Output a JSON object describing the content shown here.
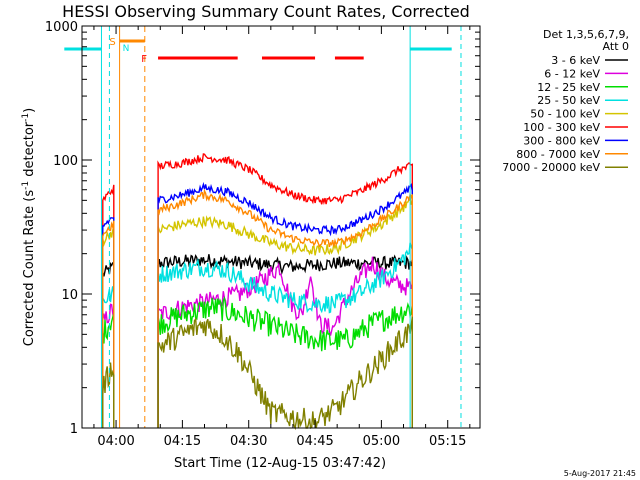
{
  "chart_data": {
    "type": "line",
    "title": "HESSI Observing Summary Count Rates, Corrected",
    "xlabel": "Start Time (12-Aug-15 03:47:42)",
    "ylabel_main": "Corrected Count Rate (s",
    "ylabel_sup1": "-1",
    "ylabel_mid": " detector",
    "ylabel_sup2": "-1",
    "ylabel_end": ")",
    "yscale": "log",
    "ylim": [
      1,
      1000
    ],
    "y_ticks": [
      {
        "value": 1,
        "label": "1"
      },
      {
        "value": 10,
        "label": "10"
      },
      {
        "value": 100,
        "label": "100"
      },
      {
        "value": 1000,
        "label": "1000"
      }
    ],
    "xlim_min": [
      -7.7,
      82.3
    ],
    "x_ticks": [
      {
        "value": 0,
        "label": "04:00"
      },
      {
        "value": 15,
        "label": "04:15"
      },
      {
        "value": 30,
        "label": "04:30"
      },
      {
        "value": 45,
        "label": "04:45"
      },
      {
        "value": 60,
        "label": "05:00"
      },
      {
        "value": 75,
        "label": "05:15"
      }
    ],
    "legend": {
      "placement": "right",
      "header1": "Det 1,3,5,6,7,9,",
      "header2": "Att 0",
      "entries": [
        {
          "label": "3 - 6 keV",
          "color": "#000000"
        },
        {
          "label": "6 - 12 keV",
          "color": "#dd00dd"
        },
        {
          "label": "12 - 25 keV",
          "color": "#00dd00"
        },
        {
          "label": "25 - 50 keV",
          "color": "#00e0e0"
        },
        {
          "label": "50 - 100 keV",
          "color": "#d4c400"
        },
        {
          "label": "100 - 300 keV",
          "color": "#ff0000"
        },
        {
          "label": "300 - 800 keV",
          "color": "#0000ff"
        },
        {
          "label": "800 - 7000 keV",
          "color": "#ff8800"
        },
        {
          "label": "7000 - 20000 keV",
          "color": "#808000"
        }
      ]
    },
    "markers": {
      "s_label": "S",
      "n_label": "N",
      "f_label": "F"
    },
    "series": [
      {
        "name": "3 - 6 keV",
        "color": "#000000",
        "noise": 0.05,
        "segments": [
          [
            [
              -3,
              14
            ],
            [
              -0.5,
              16
            ]
          ],
          [
            [
              9.5,
              17
            ],
            [
              20,
              18
            ],
            [
              30,
              17
            ],
            [
              40,
              16
            ],
            [
              50,
              17
            ],
            [
              58,
              17
            ],
            [
              63,
              17
            ],
            [
              67,
              17
            ]
          ]
        ]
      },
      {
        "name": "6 - 12 keV",
        "color": "#dd00dd",
        "noise": 0.07,
        "segments": [
          [
            [
              -3,
              6
            ],
            [
              -0.5,
              8
            ]
          ],
          [
            [
              9.5,
              7
            ],
            [
              15,
              8
            ],
            [
              22,
              9
            ],
            [
              28,
              10
            ],
            [
              32,
              12
            ],
            [
              37,
              16
            ],
            [
              40,
              8
            ],
            [
              42,
              7
            ],
            [
              44,
              14
            ],
            [
              46,
              6
            ],
            [
              49,
              5.5
            ],
            [
              52,
              9
            ],
            [
              55,
              13
            ],
            [
              58,
              17
            ],
            [
              61,
              13
            ],
            [
              63,
              12
            ],
            [
              67,
              11
            ]
          ]
        ]
      },
      {
        "name": "12 - 25 keV",
        "color": "#00dd00",
        "noise": 0.09,
        "segments": [
          [
            [
              -3,
              5
            ],
            [
              -0.5,
              7
            ]
          ],
          [
            [
              9.5,
              6
            ],
            [
              15,
              7
            ],
            [
              22,
              8
            ],
            [
              28,
              7
            ],
            [
              34,
              6
            ],
            [
              40,
              5
            ],
            [
              46,
              4.5
            ],
            [
              52,
              4.5
            ],
            [
              58,
              6
            ],
            [
              63,
              7
            ],
            [
              67,
              8
            ]
          ]
        ]
      },
      {
        "name": "25 - 50 keV",
        "color": "#00e0e0",
        "noise": 0.07,
        "segments": [
          [
            [
              -3,
              9
            ],
            [
              -0.5,
              10
            ]
          ],
          [
            [
              9.5,
              14
            ],
            [
              15,
              15
            ],
            [
              20,
              16
            ],
            [
              25,
              15
            ],
            [
              30,
              12
            ],
            [
              35,
              10
            ],
            [
              40,
              9
            ],
            [
              45,
              8.5
            ],
            [
              50,
              8.5
            ],
            [
              55,
              10
            ],
            [
              60,
              13
            ],
            [
              64,
              17
            ],
            [
              67,
              22
            ]
          ]
        ]
      },
      {
        "name": "50 - 100 keV",
        "color": "#d4c400",
        "noise": 0.04,
        "segments": [
          [
            [
              -3,
              25
            ],
            [
              -0.5,
              30
            ]
          ],
          [
            [
              9.5,
              30
            ],
            [
              15,
              33
            ],
            [
              20,
              35
            ],
            [
              25,
              33
            ],
            [
              30,
              28
            ],
            [
              35,
              24
            ],
            [
              40,
              22
            ],
            [
              45,
              21
            ],
            [
              50,
              22
            ],
            [
              55,
              27
            ],
            [
              60,
              33
            ],
            [
              64,
              42
            ],
            [
              67,
              50
            ]
          ]
        ]
      },
      {
        "name": "100 - 300 keV",
        "color": "#ff0000",
        "noise": 0.03,
        "segments": [
          [
            [
              -3,
              50
            ],
            [
              -0.5,
              62
            ]
          ],
          [
            [
              9.5,
              90
            ],
            [
              15,
              95
            ],
            [
              20,
              105
            ],
            [
              25,
              100
            ],
            [
              30,
              85
            ],
            [
              35,
              65
            ],
            [
              40,
              55
            ],
            [
              45,
              50
            ],
            [
              50,
              50
            ],
            [
              55,
              58
            ],
            [
              60,
              70
            ],
            [
              64,
              85
            ],
            [
              67,
              90
            ]
          ]
        ]
      },
      {
        "name": "300 - 800 keV",
        "color": "#0000ff",
        "noise": 0.03,
        "segments": [
          [
            [
              -3,
              32
            ],
            [
              -0.5,
              38
            ]
          ],
          [
            [
              9.5,
              50
            ],
            [
              15,
              55
            ],
            [
              20,
              62
            ],
            [
              25,
              58
            ],
            [
              30,
              48
            ],
            [
              35,
              37
            ],
            [
              40,
              32
            ],
            [
              45,
              30
            ],
            [
              50,
              30
            ],
            [
              55,
              35
            ],
            [
              60,
              43
            ],
            [
              64,
              53
            ],
            [
              67,
              62
            ]
          ]
        ]
      },
      {
        "name": "800 - 7000 keV",
        "color": "#ff8800",
        "noise": 0.03,
        "segments": [
          [
            [
              -3,
              28
            ],
            [
              -0.5,
              33
            ]
          ],
          [
            [
              9.5,
              42
            ],
            [
              15,
              48
            ],
            [
              20,
              55
            ],
            [
              25,
              50
            ],
            [
              30,
              40
            ],
            [
              35,
              30
            ],
            [
              40,
              26
            ],
            [
              45,
              24
            ],
            [
              50,
              24
            ],
            [
              55,
              28
            ],
            [
              60,
              36
            ],
            [
              64,
              45
            ],
            [
              67,
              55
            ]
          ]
        ]
      },
      {
        "name": "7000 - 20000 keV",
        "color": "#808000",
        "noise": 0.09,
        "segments": [
          [
            [
              -3,
              2
            ],
            [
              -0.5,
              3
            ]
          ],
          [
            [
              9.5,
              4
            ],
            [
              15,
              5
            ],
            [
              20,
              6
            ],
            [
              24,
              5
            ],
            [
              28,
              3.5
            ],
            [
              32,
              2
            ],
            [
              35,
              1.3
            ],
            [
              40,
              1.2
            ],
            [
              45,
              1.1
            ],
            [
              50,
              1.4
            ],
            [
              55,
              2.2
            ],
            [
              60,
              3.2
            ],
            [
              64,
              4.5
            ],
            [
              67,
              5.5
            ]
          ]
        ]
      }
    ]
  },
  "footer": {
    "timestamp": "5-Aug-2017 21:45"
  }
}
